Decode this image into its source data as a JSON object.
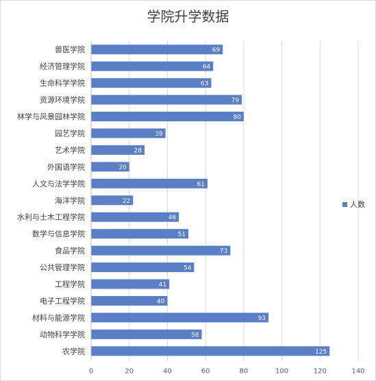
{
  "chart_data": {
    "type": "bar",
    "orientation": "horizontal",
    "title": "学院升学数据",
    "categories": [
      "兽医学院",
      "经济管理学院",
      "生命科学学院",
      "资源环境学院",
      "林学与风景园林学院",
      "园艺学院",
      "艺术学院",
      "外国语学院",
      "人文与法学学院",
      "海洋学院",
      "水利与土木工程学院",
      "数学与信息学院",
      "食品学院",
      "公共管理学院",
      "工程学院",
      "电子工程学院",
      "材料与能源学院",
      "动物科学学院",
      "农学院"
    ],
    "series": [
      {
        "name": "人数",
        "values": [
          69,
          64,
          63,
          79,
          80,
          39,
          28,
          20,
          61,
          22,
          46,
          51,
          73,
          54,
          41,
          40,
          93,
          58,
          125
        ]
      }
    ],
    "xlim": [
      0,
      140
    ],
    "xticks": [
      0,
      20,
      40,
      60,
      80,
      100,
      120,
      140
    ],
    "grid": true,
    "legend_position": "right",
    "bar_color": "#5b7fc5"
  }
}
